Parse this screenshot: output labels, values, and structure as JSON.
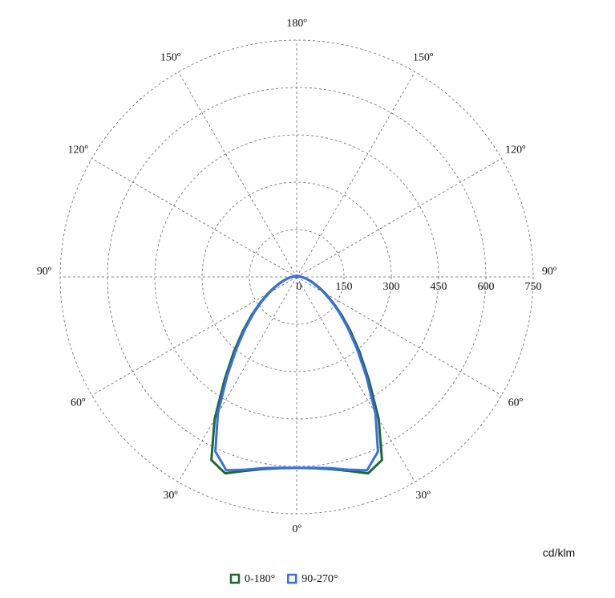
{
  "chart_data": {
    "type": "polar",
    "angles": [
      0,
      5,
      10,
      15,
      20,
      25,
      30,
      35,
      40,
      45,
      50,
      55,
      60,
      65,
      70,
      75,
      80,
      85,
      90,
      95,
      100,
      105,
      110,
      115,
      120,
      125,
      130,
      135,
      140,
      145,
      150,
      155,
      160,
      165,
      170,
      175,
      180
    ],
    "series": [
      {
        "name": "0-180°",
        "color": "#1b6b30",
        "values": [
          605,
          608,
          618,
          636,
          662,
          640,
          520,
          400,
          310,
          240,
          185,
          140,
          105,
          78,
          58,
          42,
          30,
          22,
          16,
          12,
          10,
          8,
          7,
          6,
          5,
          5,
          4,
          4,
          4,
          4,
          3,
          3,
          3,
          3,
          3,
          3,
          3
        ]
      },
      {
        "name": "90-270°",
        "color": "#3a6ee8",
        "values": [
          605,
          607,
          615,
          632,
          652,
          610,
          500,
          385,
          298,
          230,
          178,
          135,
          100,
          74,
          55,
          40,
          29,
          21,
          15,
          12,
          10,
          8,
          7,
          6,
          5,
          5,
          4,
          4,
          4,
          4,
          3,
          3,
          3,
          3,
          3,
          3,
          3
        ]
      }
    ],
    "rlim": [
      0,
      750
    ],
    "rticks": [
      0,
      150,
      300,
      450,
      600,
      750
    ],
    "angle_ticks": [
      {
        "value": 0,
        "label": "0º"
      },
      {
        "value": 30,
        "label": "30º"
      },
      {
        "value": 60,
        "label": "60º"
      },
      {
        "value": 90,
        "label": "90º"
      },
      {
        "value": 120,
        "label": "120º"
      },
      {
        "value": 150,
        "label": "150º"
      },
      {
        "value": 180,
        "label": "180º"
      }
    ],
    "unit_label": "cd/klm",
    "grid": true
  }
}
